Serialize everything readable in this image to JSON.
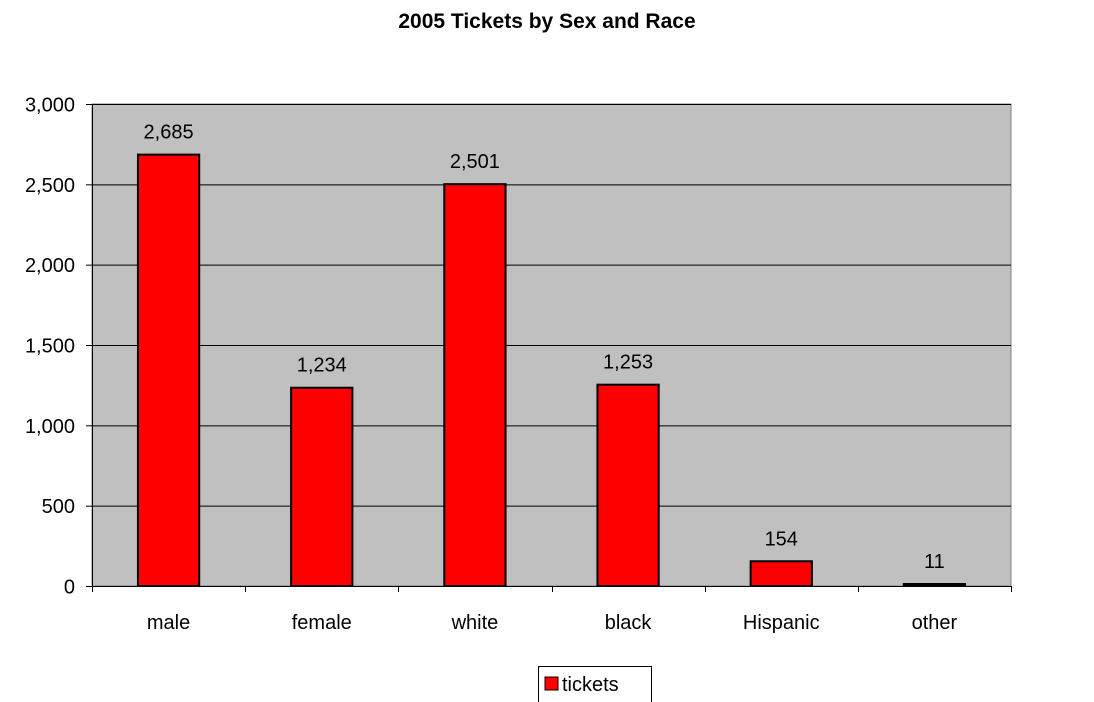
{
  "chart_data": {
    "type": "bar",
    "title": "2005 Tickets by Sex and Race",
    "categories": [
      "male",
      "female",
      "white",
      "black",
      "Hispanic",
      "other"
    ],
    "series": [
      {
        "name": "tickets",
        "values": [
          2685,
          1234,
          2501,
          1253,
          154,
          11
        ],
        "value_labels": [
          "2,685",
          "1,234",
          "2,501",
          "1,253",
          "154",
          "11"
        ],
        "color": "#ff0000"
      }
    ],
    "ylim": [
      0,
      3000
    ],
    "yticks": [
      0,
      500,
      1000,
      1500,
      2000,
      2500,
      3000
    ],
    "ytick_labels": [
      "0",
      "500",
      "1,000",
      "1,500",
      "2,000",
      "2,500",
      "3,000"
    ],
    "xlabel": "",
    "ylabel": "",
    "grid": true,
    "legend_position": "bottom",
    "plot_background": "#c0c0c0"
  }
}
